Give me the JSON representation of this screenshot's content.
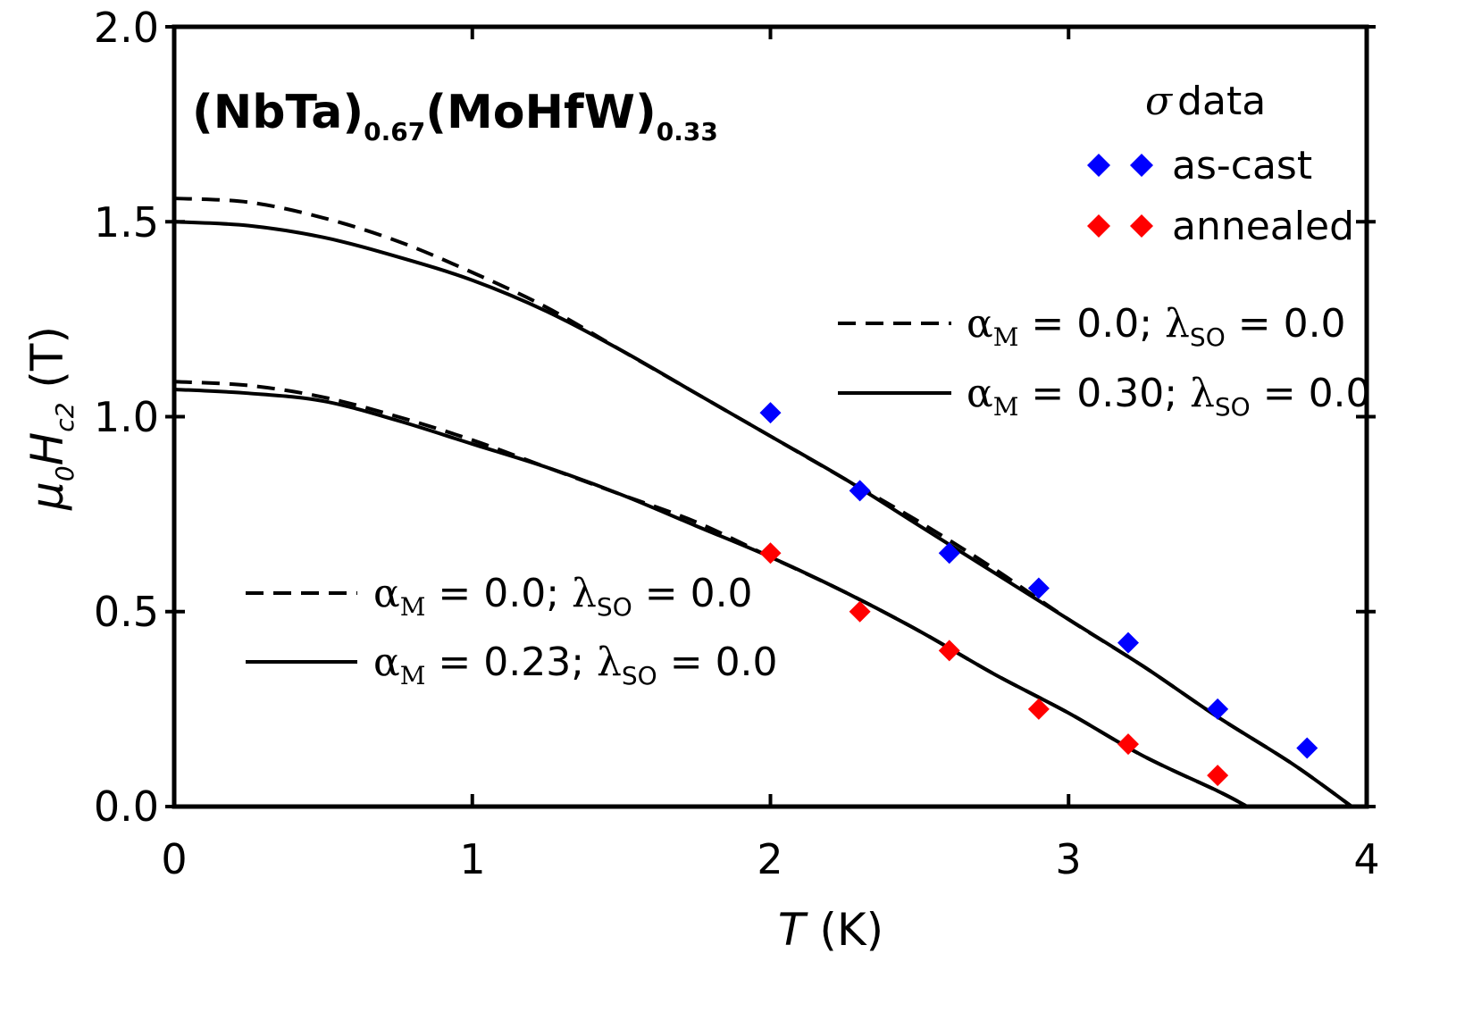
{
  "chart_data": {
    "type": "scatter",
    "title": "(NbTa)0.67(MoHfW)0.33",
    "title_parts": {
      "p1": "(NbTa)",
      "s1": "0.67",
      "p2": "(MoHfW)",
      "s2": "0.33"
    },
    "xlabel": "T (K)",
    "xlabel_parts": {
      "var": "T",
      "unit": " (K)"
    },
    "ylabel": "μ0Hc2 (T)",
    "ylabel_parts": {
      "mu": "μ",
      "mu_sub": "0",
      "H": "H",
      "H_sub": "c2",
      "unit": " (T)"
    },
    "xlim": [
      0,
      4
    ],
    "ylim": [
      0,
      2.0
    ],
    "x_ticks": [
      "0",
      "1",
      "2",
      "3",
      "4"
    ],
    "y_ticks": [
      "0.0",
      "0.5",
      "1.0",
      "1.5",
      "2.0"
    ],
    "legend_markers": {
      "header": "data",
      "header_symbol": "σ",
      "placement": "top-right",
      "entries": [
        {
          "label": "as-cast",
          "color": "#0000ff"
        },
        {
          "label": "annealed",
          "color": "#ff0000"
        }
      ]
    },
    "series": [
      {
        "name": "as-cast",
        "color": "#0000ff",
        "marker": "diamond",
        "x": [
          2.0,
          2.3,
          2.6,
          2.9,
          3.2,
          3.5,
          3.8
        ],
        "y": [
          1.01,
          0.81,
          0.65,
          0.56,
          0.42,
          0.25,
          0.15
        ]
      },
      {
        "name": "annealed",
        "color": "#ff0000",
        "marker": "diamond",
        "x": [
          2.0,
          2.3,
          2.6,
          2.9,
          3.2,
          3.5
        ],
        "y": [
          0.65,
          0.5,
          0.4,
          0.25,
          0.16,
          0.08
        ]
      }
    ],
    "fits": [
      {
        "group": "upper",
        "style": "dashed",
        "label": "αM = 0.0; λSO = 0.0",
        "alpha": "0.0",
        "lambda": "0.0",
        "x": [
          0,
          0.25,
          0.5,
          0.75,
          1.0,
          1.25,
          1.5,
          1.75,
          2.0,
          2.25,
          2.5,
          2.75,
          3.0,
          3.25,
          3.5,
          3.75,
          3.95
        ],
        "y": [
          1.56,
          1.55,
          1.51,
          1.45,
          1.37,
          1.28,
          1.17,
          1.06,
          0.95,
          0.84,
          0.73,
          0.61,
          0.48,
          0.36,
          0.23,
          0.11,
          0.0
        ]
      },
      {
        "group": "upper",
        "style": "solid",
        "label": "αM = 0.30; λSO = 0.0",
        "alpha": "0.30",
        "lambda": "0.0",
        "x": [
          0,
          0.25,
          0.5,
          0.75,
          1.0,
          1.25,
          1.5,
          1.75,
          2.0,
          2.25,
          2.5,
          2.75,
          3.0,
          3.25,
          3.5,
          3.75,
          3.95
        ],
        "y": [
          1.5,
          1.49,
          1.46,
          1.41,
          1.35,
          1.27,
          1.17,
          1.06,
          0.95,
          0.84,
          0.72,
          0.6,
          0.48,
          0.36,
          0.23,
          0.11,
          0.0
        ]
      },
      {
        "group": "lower",
        "style": "dashed",
        "label": "αM = 0.0; λSO = 0.0",
        "alpha": "0.0",
        "lambda": "0.0",
        "x": [
          0,
          0.25,
          0.5,
          0.75,
          1.0,
          1.25,
          1.5,
          1.75,
          2.0,
          2.25,
          2.5,
          2.75,
          3.0,
          3.25,
          3.5,
          3.6
        ],
        "y": [
          1.09,
          1.08,
          1.05,
          1.0,
          0.94,
          0.87,
          0.8,
          0.73,
          0.64,
          0.55,
          0.45,
          0.34,
          0.24,
          0.13,
          0.04,
          0.0
        ]
      },
      {
        "group": "lower",
        "style": "solid",
        "label": "αM = 0.23; λSO = 0.0",
        "alpha": "0.23",
        "lambda": "0.0",
        "x": [
          0,
          0.25,
          0.5,
          0.75,
          1.0,
          1.25,
          1.5,
          1.75,
          2.0,
          2.25,
          2.5,
          2.75,
          3.0,
          3.25,
          3.5,
          3.6
        ],
        "y": [
          1.07,
          1.06,
          1.04,
          0.99,
          0.93,
          0.87,
          0.8,
          0.72,
          0.64,
          0.55,
          0.45,
          0.34,
          0.24,
          0.13,
          0.04,
          0.0
        ]
      }
    ]
  }
}
